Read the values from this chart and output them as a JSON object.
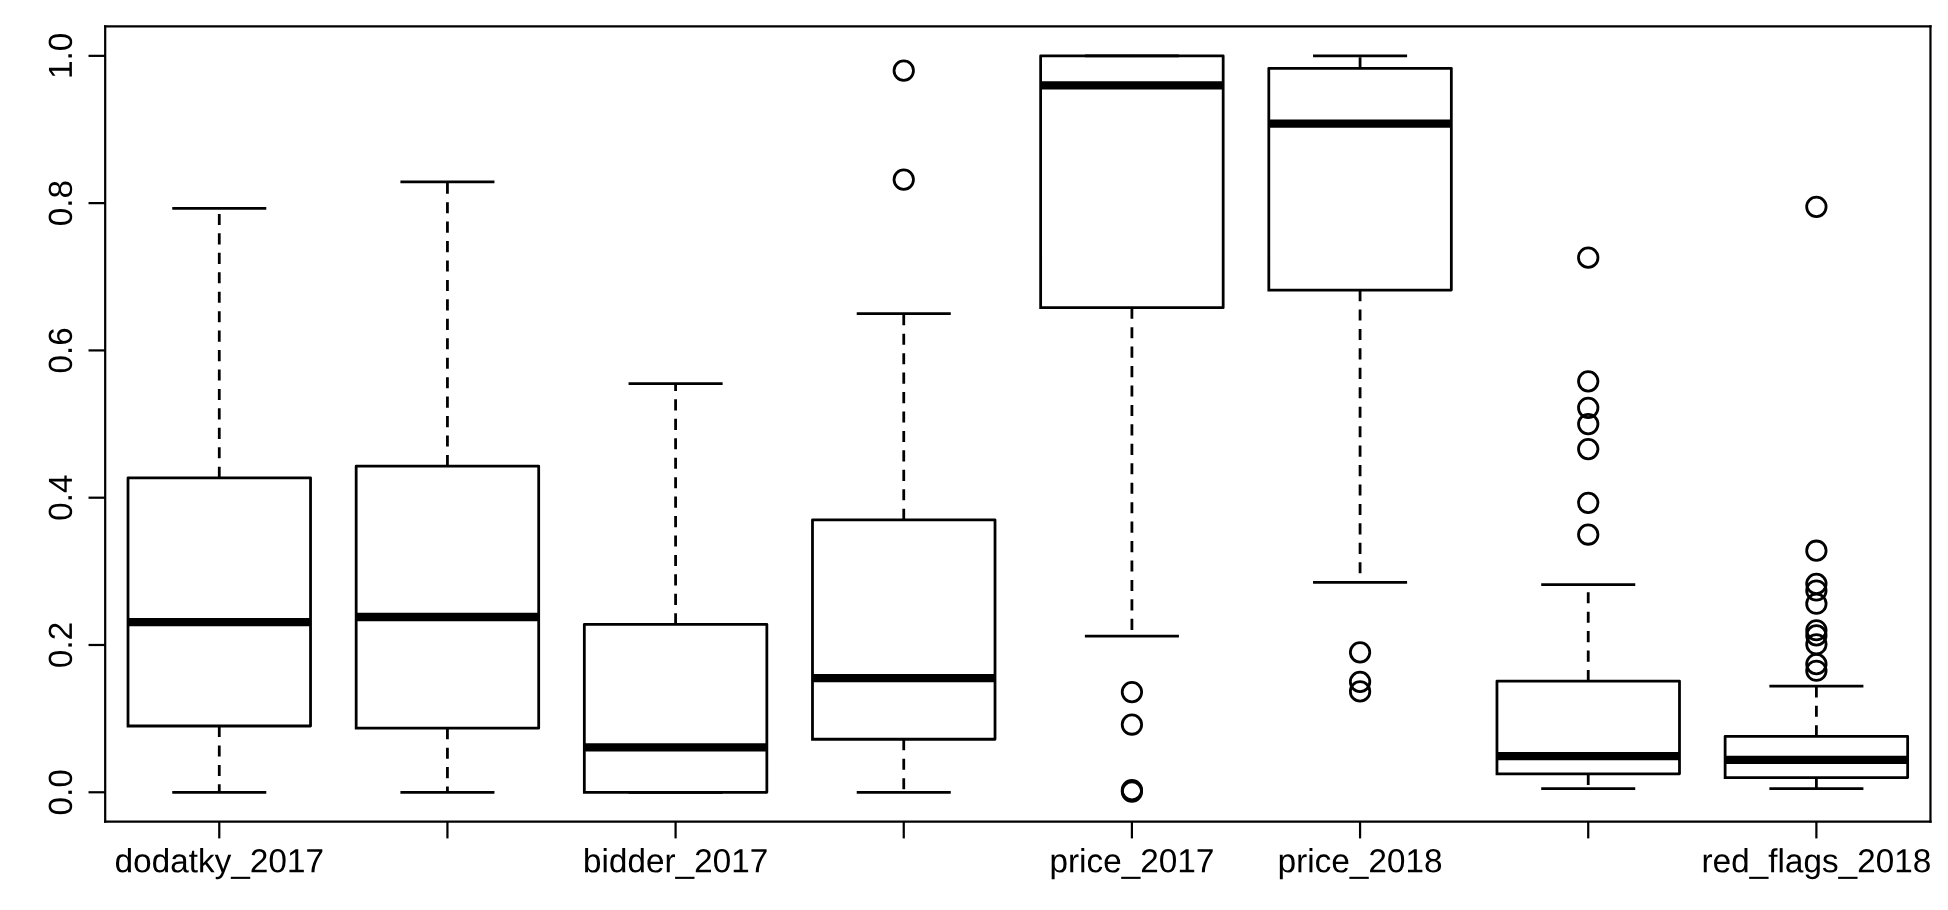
{
  "chart_data": {
    "type": "box",
    "categories": [
      "dodatky_2017",
      null,
      "bidder_2017",
      null,
      "price_2017",
      "price_2018",
      null,
      "red_flags_2018"
    ],
    "boxes": [
      {
        "low": 0,
        "q1": 0.09,
        "median": 0.231,
        "q3": 0.427,
        "high": 0.793
      },
      {
        "low": 0,
        "q1": 0.087,
        "median": 0.238,
        "q3": 0.443,
        "high": 0.829
      },
      {
        "low": 0,
        "q1": 0,
        "median": 0.061,
        "q3": 0.228,
        "high": 0.555
      },
      {
        "low": 0,
        "q1": 0.072,
        "median": 0.155,
        "q3": 0.37,
        "high": 0.65,
        "outliers": [
          0.832,
          0.98
        ]
      },
      {
        "low": 0.212,
        "q1": 0.658,
        "median": 0.96,
        "q3": 1.0,
        "high": 1.0,
        "outliers": [
          0.136,
          0.092,
          0.003,
          0.001
        ]
      },
      {
        "low": 0.285,
        "q1": 0.682,
        "median": 0.908,
        "q3": 0.983,
        "high": 1.0,
        "outliers": [
          0.19,
          0.15,
          0.137
        ]
      },
      {
        "low": 0.005,
        "q1": 0.025,
        "median": 0.049,
        "q3": 0.151,
        "high": 0.282,
        "outliers": [
          0.726,
          0.558,
          0.522,
          0.5,
          0.466,
          0.393,
          0.35
        ]
      },
      {
        "low": 0.005,
        "q1": 0.02,
        "median": 0.044,
        "q3": 0.076,
        "high": 0.144,
        "outliers": [
          0.795,
          0.328,
          0.283,
          0.274,
          0.256,
          0.22,
          0.213,
          0.201,
          0.174,
          0.165
        ]
      }
    ],
    "color": "#000000",
    "ylim": [
      -0.04,
      1.04
    ],
    "yticks": [
      {
        "value": 0,
        "label": "0.0"
      },
      0.2,
      0.4,
      0.6,
      0.8,
      {
        "value": 1,
        "label": "1.0"
      }
    ],
    "grid": false,
    "legend": false
  }
}
